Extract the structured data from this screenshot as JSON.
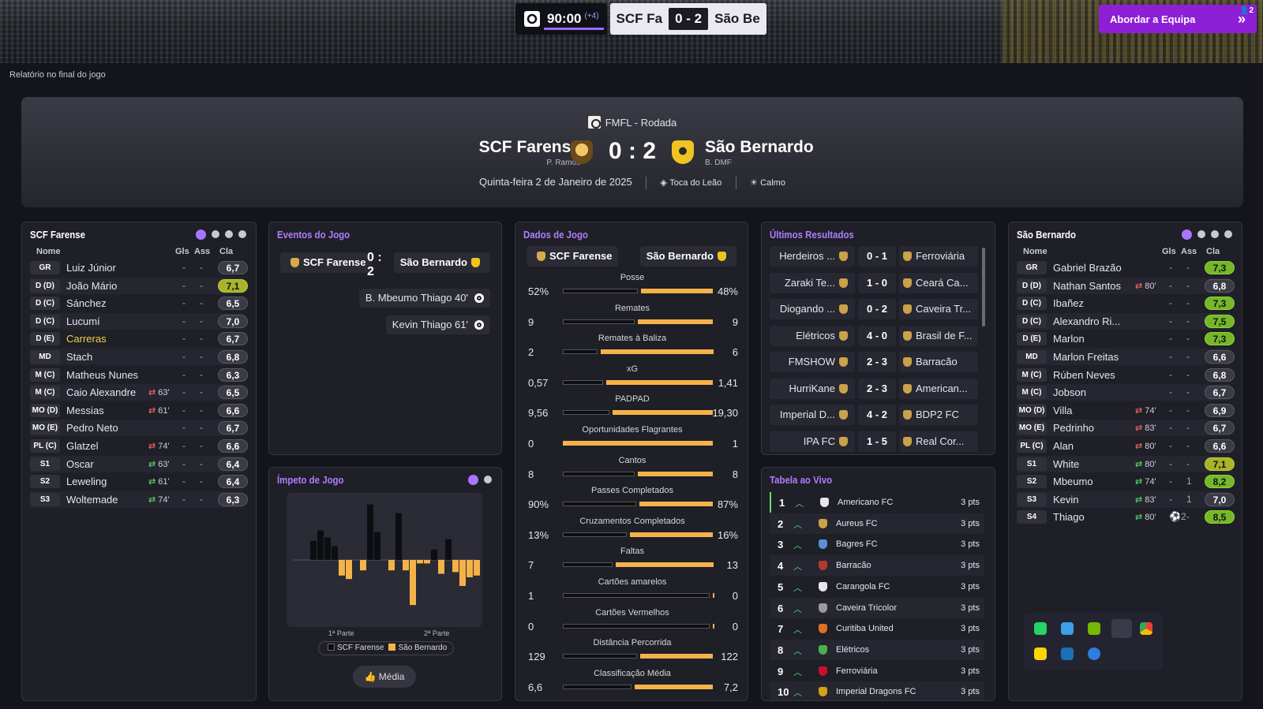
{
  "scorebug": {
    "time": "90:00",
    "added": "(+4)",
    "home_short": "SCF Fa",
    "score": "0 - 2",
    "away_short": "São Be"
  },
  "approach_btn": "Abordar a Equipa",
  "approach_count": "2",
  "report_label": "Relatório no final do jogo",
  "header": {
    "competition": "FMFL - Rodada",
    "home": "SCF Farense",
    "home_manager": "P. Ramos",
    "away": "São Bernardo",
    "away_manager": "B. DMF",
    "score": "0 : 2",
    "date": "Quinta-feira 2 de Janeiro de 2025",
    "stadium": "Toca do Leão",
    "weather": "Calmo"
  },
  "home_lineup": {
    "title": "SCF Farense",
    "cols": {
      "name": "Nome",
      "gls": "Gls",
      "ass": "Ass",
      "cla": "Cla"
    },
    "players": [
      {
        "pos": "GR",
        "name": "Luiz Júnior",
        "sub": "",
        "gls": "-",
        "ass": "-",
        "rating": "6,7"
      },
      {
        "pos": "D (D)",
        "name": "João Mário",
        "sub": "",
        "gls": "-",
        "ass": "-",
        "rating": "7,1"
      },
      {
        "pos": "D (C)",
        "name": "Sánchez",
        "sub": "",
        "gls": "-",
        "ass": "-",
        "rating": "6,5"
      },
      {
        "pos": "D (C)",
        "name": "Lucumí",
        "sub": "",
        "gls": "-",
        "ass": "-",
        "rating": "7,0"
      },
      {
        "pos": "D (E)",
        "name": "Carreras",
        "sub": "",
        "gls": "-",
        "ass": "-",
        "rating": "6,7"
      },
      {
        "pos": "MD",
        "name": "Stach",
        "sub": "",
        "gls": "-",
        "ass": "-",
        "rating": "6,8"
      },
      {
        "pos": "M (C)",
        "name": "Matheus Nunes",
        "sub": "",
        "gls": "-",
        "ass": "-",
        "rating": "6,3"
      },
      {
        "pos": "M (C)",
        "name": "Caio Alexandre",
        "sub": "63'",
        "gls": "-",
        "ass": "-",
        "rating": "6,5"
      },
      {
        "pos": "MO (D)",
        "name": "Messias",
        "sub": "61'",
        "gls": "-",
        "ass": "-",
        "rating": "6,6"
      },
      {
        "pos": "MO (E)",
        "name": "Pedro Neto",
        "sub": "",
        "gls": "-",
        "ass": "-",
        "rating": "6,7"
      },
      {
        "pos": "PL (C)",
        "name": "Glatzel",
        "sub": "74'",
        "gls": "-",
        "ass": "-",
        "rating": "6,6"
      },
      {
        "pos": "S1",
        "name": "Oscar",
        "sub": "63'",
        "gls": "-",
        "ass": "-",
        "rating": "6,4"
      },
      {
        "pos": "S2",
        "name": "Leweling",
        "sub": "61'",
        "gls": "-",
        "ass": "-",
        "rating": "6,4"
      },
      {
        "pos": "S3",
        "name": "Woltemade",
        "sub": "74'",
        "gls": "-",
        "ass": "-",
        "rating": "6,3"
      }
    ]
  },
  "events": {
    "title": "Eventos do Jogo",
    "home": "SCF Farense",
    "away": "São Bernardo",
    "score_top": "0 :",
    "score_bot": "2",
    "items": [
      {
        "text": "B. Mbeumo Thiago 40'"
      },
      {
        "text": "Kevin  Thiago 61'"
      }
    ]
  },
  "momentum": {
    "title": "Ímpeto de Jogo",
    "half1": "1ª Parte",
    "half2": "2ª Parte",
    "legend_home": "SCF Farense",
    "legend_away": "São Bernardo",
    "button": "Média",
    "home_color": "#0d0e12",
    "away_color": "#f6b24a",
    "values": [
      0,
      0,
      1.1,
      1.7,
      1.3,
      0.8,
      -0.9,
      -1.1,
      0,
      -0.6,
      3.2,
      1.6,
      0,
      -0.6,
      2.7,
      -0.6,
      -2.6,
      -0.2,
      -0.2,
      0.6,
      -0.8,
      1.2,
      -0.7,
      -1.5,
      -1.0,
      -0.9,
      0
    ]
  },
  "stats": {
    "title": "Dados de Jogo",
    "home": "SCF Farense",
    "away": "São Bernardo",
    "rows": [
      {
        "label": "Posse",
        "home": "52%",
        "away": "48%",
        "hv": 52,
        "av": 48
      },
      {
        "label": "Remates",
        "home": "9",
        "away": "9",
        "hv": 9,
        "av": 9
      },
      {
        "label": "Remates à Baliza",
        "home": "2",
        "away": "6",
        "hv": 2,
        "av": 6
      },
      {
        "label": "xG",
        "home": "0,57",
        "away": "1,41",
        "hv": 0.57,
        "av": 1.41
      },
      {
        "label": "PADPAD",
        "home": "9,56",
        "away": "19,30",
        "hv": 9.56,
        "av": 19.3
      },
      {
        "label": "Oportunidades Flagrantes",
        "home": "0",
        "away": "1",
        "hv": 0,
        "av": 1
      },
      {
        "label": "Cantos",
        "home": "8",
        "away": "8",
        "hv": 8,
        "av": 8
      },
      {
        "label": "Passes Completados",
        "home": "90%",
        "away": "87%",
        "hv": 90,
        "av": 87
      },
      {
        "label": "Cruzamentos Completados",
        "home": "13%",
        "away": "16%",
        "hv": 13,
        "av": 16
      },
      {
        "label": "Faltas",
        "home": "7",
        "away": "13",
        "hv": 7,
        "av": 13
      },
      {
        "label": "Cartões amarelos",
        "home": "1",
        "away": "0",
        "hv": 1,
        "av": 0
      },
      {
        "label": "Cartões Vermelhos",
        "home": "0",
        "away": "0",
        "hv": 0,
        "av": 0
      },
      {
        "label": "Distância Percorrida",
        "home": "129",
        "away": "122",
        "hv": 129,
        "av": 122
      },
      {
        "label": "Classificação Média",
        "home": "6,6",
        "away": "7,2",
        "hv": 6.6,
        "av": 7.2
      }
    ]
  },
  "results": {
    "title": "Últimos Resultados",
    "rows": [
      {
        "home": "Herdeiros ...",
        "score": "0 - 1",
        "away": "Ferroviária"
      },
      {
        "home": "Zaraki Te...",
        "score": "1 - 0",
        "away": "Ceará Ca..."
      },
      {
        "home": "Diogando ...",
        "score": "0 - 2",
        "away": "Caveira Tr..."
      },
      {
        "home": "Elétricos",
        "score": "4 - 0",
        "away": "Brasil de F..."
      },
      {
        "home": "FMSHOW",
        "score": "2 - 3",
        "away": "Barracão"
      },
      {
        "home": "HurriKane",
        "score": "2 - 3",
        "away": "American..."
      },
      {
        "home": "Imperial D...",
        "score": "4 - 2",
        "away": "BDP2 FC"
      },
      {
        "home": "IPA FC",
        "score": "1 - 5",
        "away": "Real Cor..."
      }
    ]
  },
  "table": {
    "title": "Tabela ao Vivo",
    "rows": [
      {
        "rank": "1",
        "team": "Americano FC",
        "pts": "3 pts",
        "color": "#e6e6ec"
      },
      {
        "rank": "2",
        "team": "Aureus FC",
        "pts": "3 pts",
        "color": "#c9a24a"
      },
      {
        "rank": "3",
        "team": "Bagres FC",
        "pts": "3 pts",
        "color": "#5a8fd6"
      },
      {
        "rank": "4",
        "team": "Barracão",
        "pts": "3 pts",
        "color": "#b03a2e"
      },
      {
        "rank": "5",
        "team": "Carangola FC",
        "pts": "3 pts",
        "color": "#e6e6ec"
      },
      {
        "rank": "6",
        "team": "Caveira Tricolor",
        "pts": "3 pts",
        "color": "#9a9a9a"
      },
      {
        "rank": "7",
        "team": "Curitiba United",
        "pts": "3 pts",
        "color": "#e0701e"
      },
      {
        "rank": "8",
        "team": "Elétricos",
        "pts": "3 pts",
        "color": "#4caf50"
      },
      {
        "rank": "9",
        "team": "Ferroviária",
        "pts": "3 pts",
        "color": "#c8102e"
      },
      {
        "rank": "10",
        "team": "Imperial Dragons FC",
        "pts": "3 pts",
        "color": "#d4a017"
      }
    ]
  },
  "away_lineup": {
    "title": "São Bernardo",
    "cols": {
      "name": "Nome",
      "gls": "Gls",
      "ass": "Ass",
      "cla": "Cla"
    },
    "players": [
      {
        "pos": "GR",
        "name": "Gabriel Brazão",
        "sub": "",
        "gls": "-",
        "ass": "-",
        "rating": "7,3"
      },
      {
        "pos": "D (D)",
        "name": "Nathan Santos",
        "sub": "80'",
        "gls": "-",
        "ass": "-",
        "rating": "6,8"
      },
      {
        "pos": "D (C)",
        "name": "Ibañez",
        "sub": "",
        "gls": "-",
        "ass": "-",
        "rating": "7,3"
      },
      {
        "pos": "D (C)",
        "name": "Alexandro Ri...",
        "sub": "",
        "gls": "-",
        "ass": "-",
        "rating": "7,5"
      },
      {
        "pos": "D (E)",
        "name": "Marlon",
        "sub": "",
        "gls": "-",
        "ass": "-",
        "rating": "7,3"
      },
      {
        "pos": "MD",
        "name": "Marlon Freitas",
        "sub": "",
        "gls": "-",
        "ass": "-",
        "rating": "6,6"
      },
      {
        "pos": "M (C)",
        "name": "Rúben Neves",
        "sub": "",
        "gls": "-",
        "ass": "-",
        "rating": "6,8"
      },
      {
        "pos": "M (C)",
        "name": "Jobson",
        "sub": "",
        "gls": "-",
        "ass": "-",
        "rating": "6,7"
      },
      {
        "pos": "MO (D)",
        "name": "Villa",
        "sub": "74'",
        "gls": "-",
        "ass": "-",
        "rating": "6,9"
      },
      {
        "pos": "MO (E)",
        "name": "Pedrinho",
        "sub": "83'",
        "gls": "-",
        "ass": "-",
        "rating": "6,7"
      },
      {
        "pos": "PL (C)",
        "name": "Alan",
        "sub": "80'",
        "gls": "-",
        "ass": "-",
        "rating": "6,6"
      },
      {
        "pos": "S1",
        "name": "White",
        "sub": "80'",
        "gls": "-",
        "ass": "-",
        "rating": "7,1"
      },
      {
        "pos": "S2",
        "name": "Mbeumo",
        "sub": "74'",
        "gls": "-",
        "ass": "1",
        "rating": "8,2"
      },
      {
        "pos": "S3",
        "name": "Kevin",
        "sub": "83'",
        "gls": "-",
        "ass": "1",
        "rating": "7,0"
      },
      {
        "pos": "S4",
        "name": "Thiago",
        "sub": "80'",
        "gls": "⚽2",
        "ass": "-",
        "rating": "8,5"
      }
    ]
  },
  "tray_icons": [
    "whatsapp-icon",
    "app-icon",
    "nvidia-icon",
    "pen-icon",
    "chrome-icon",
    "norton-icon",
    "steam-icon",
    "bluetooth-icon"
  ]
}
